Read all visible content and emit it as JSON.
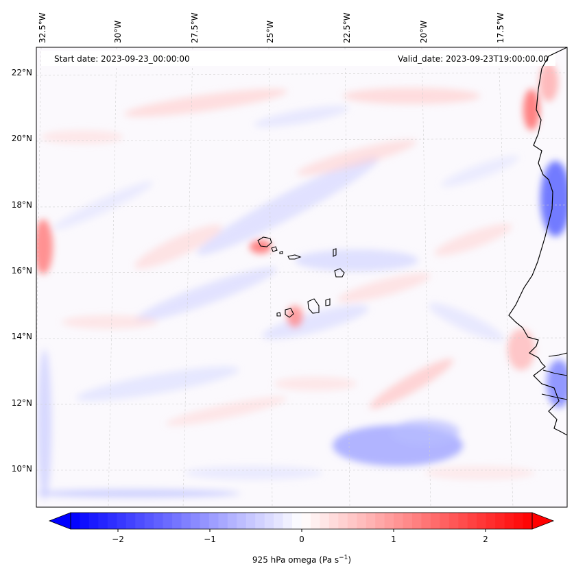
{
  "map": {
    "start_date_label": "Start date: 2023-09-23_00:00:00",
    "valid_date_label": "Valid_date: 2023-09-23T19:00:00.00",
    "lon_labels": [
      "32.5°W",
      "30°W",
      "27.5°W",
      "25°W",
      "22.5°W",
      "20°W",
      "17.5°W"
    ],
    "lat_labels": [
      "22°N",
      "20°N",
      "18°N",
      "16°N",
      "14°N",
      "12°N",
      "10°N"
    ],
    "field": "925 hPa omega",
    "units": "Pa s⁻¹",
    "grid": true,
    "region": "Cabo Verde islands and West African coast"
  },
  "colorbar": {
    "label_main": "925 hPa omega (Pa s",
    "label_exp": "−1",
    "label_close": ")",
    "ticks": [
      "−2",
      "−1",
      "0",
      "1",
      "2"
    ],
    "tick_values": [
      -2,
      -1,
      0,
      1,
      2
    ],
    "range": [
      -2.6,
      2.6
    ],
    "extend": "both",
    "colormap": "bwr",
    "colors": {
      "low": "#0000ff",
      "mid": "#ffffff",
      "high": "#ff0000"
    }
  }
}
